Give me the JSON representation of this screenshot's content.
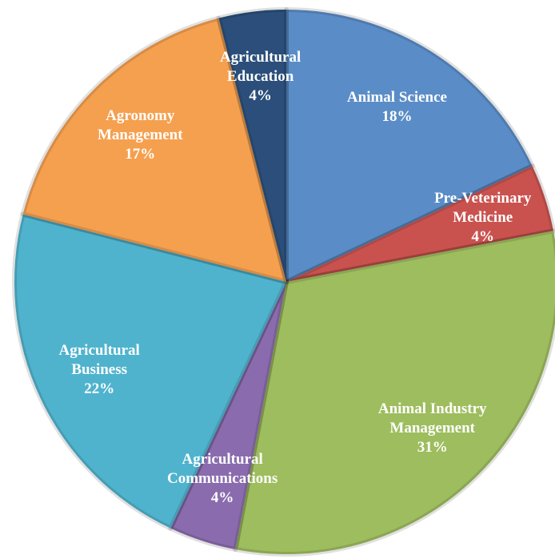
{
  "chart_data": {
    "type": "pie",
    "categories": [
      "Animal Science",
      "Pre-Veterinary Medicine",
      "Animal Industry Management",
      "Agricultural Communications",
      "Agricultural Business",
      "Agronomy Management",
      "Agricultural Education"
    ],
    "values": [
      18,
      4,
      31,
      4,
      22,
      17,
      4
    ],
    "value_labels": [
      "18%",
      "4%",
      "31%",
      "4%",
      "22%",
      "17%",
      "4%"
    ],
    "colors": [
      "#5a8dc7",
      "#c9524f",
      "#9ebd5e",
      "#8a6cae",
      "#4fb3cd",
      "#f5a04f",
      "#2b4f7a"
    ]
  }
}
